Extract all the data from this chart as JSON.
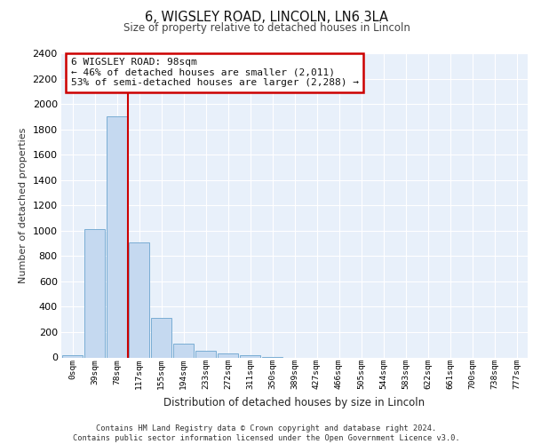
{
  "title": "6, WIGSLEY ROAD, LINCOLN, LN6 3LA",
  "subtitle": "Size of property relative to detached houses in Lincoln",
  "xlabel": "Distribution of detached houses by size in Lincoln",
  "ylabel": "Number of detached properties",
  "bar_color": "#c5d9f0",
  "bar_edge_color": "#7aadd4",
  "background_color": "#e8f0fa",
  "grid_color": "#ffffff",
  "annotation_line_color": "#cc0000",
  "annotation_box_color": "#cc0000",
  "annotation_text": "6 WIGSLEY ROAD: 98sqm\n← 46% of detached houses are smaller (2,011)\n53% of semi-detached houses are larger (2,288) →",
  "property_sqm": 98,
  "categories": [
    "0sqm",
    "39sqm",
    "78sqm",
    "117sqm",
    "155sqm",
    "194sqm",
    "233sqm",
    "272sqm",
    "311sqm",
    "350sqm",
    "389sqm",
    "427sqm",
    "466sqm",
    "505sqm",
    "544sqm",
    "583sqm",
    "622sqm",
    "661sqm",
    "700sqm",
    "738sqm",
    "777sqm"
  ],
  "values": [
    20,
    1010,
    1900,
    910,
    315,
    110,
    55,
    35,
    20,
    5,
    0,
    0,
    0,
    0,
    0,
    0,
    0,
    0,
    0,
    0,
    0
  ],
  "ylim": [
    0,
    2400
  ],
  "yticks": [
    0,
    200,
    400,
    600,
    800,
    1000,
    1200,
    1400,
    1600,
    1800,
    2000,
    2200,
    2400
  ],
  "red_line_bar_index": 3,
  "footer_line1": "Contains HM Land Registry data © Crown copyright and database right 2024.",
  "footer_line2": "Contains public sector information licensed under the Open Government Licence v3.0."
}
